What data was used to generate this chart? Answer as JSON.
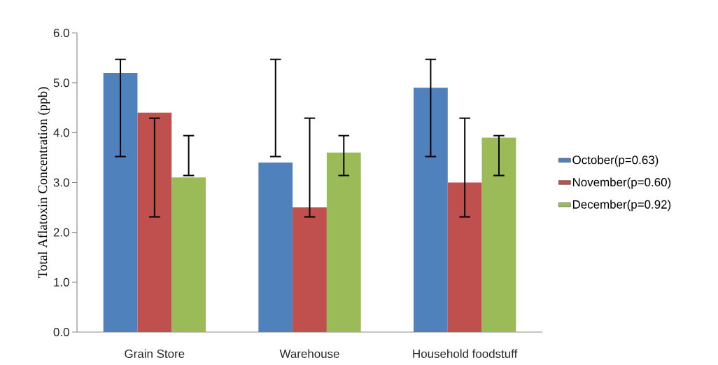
{
  "chart_data": {
    "type": "bar",
    "ylabel": "Total Aflatoxin  Concentration (ppb)",
    "categories": [
      "Grain Store",
      "Warehouse",
      "Household foodstuff"
    ],
    "series": [
      {
        "name": "October(p=0.63)",
        "color": "#4f81bd",
        "values": [
          5.2,
          3.4,
          4.9
        ],
        "errors": [
          [
            3.52,
            5.47
          ],
          [
            3.52,
            5.47
          ],
          [
            3.52,
            5.47
          ]
        ]
      },
      {
        "name": "November(p=0.60)",
        "color": "#c0504d",
        "values": [
          4.4,
          2.5,
          3.0
        ],
        "errors": [
          [
            2.31,
            4.29
          ],
          [
            2.31,
            4.29
          ],
          [
            2.31,
            4.29
          ]
        ]
      },
      {
        "name": "December(p=0.92)",
        "color": "#9bbb59",
        "values": [
          3.1,
          3.6,
          3.9
        ],
        "errors": [
          [
            3.14,
            3.94
          ],
          [
            3.14,
            3.94
          ],
          [
            3.14,
            3.94
          ]
        ]
      }
    ],
    "ylim": [
      0,
      6
    ],
    "yticks": [
      {
        "value": 0,
        "label": "0.0"
      },
      {
        "value": 1,
        "label": "1.0"
      },
      {
        "value": 2,
        "label": "2.0"
      },
      {
        "value": 3,
        "label": "3.0"
      },
      {
        "value": 4,
        "label": "4.0"
      },
      {
        "value": 5,
        "label": "5.0"
      },
      {
        "value": 6,
        "label": "6.0"
      }
    ],
    "legend": "right",
    "grid": false
  }
}
